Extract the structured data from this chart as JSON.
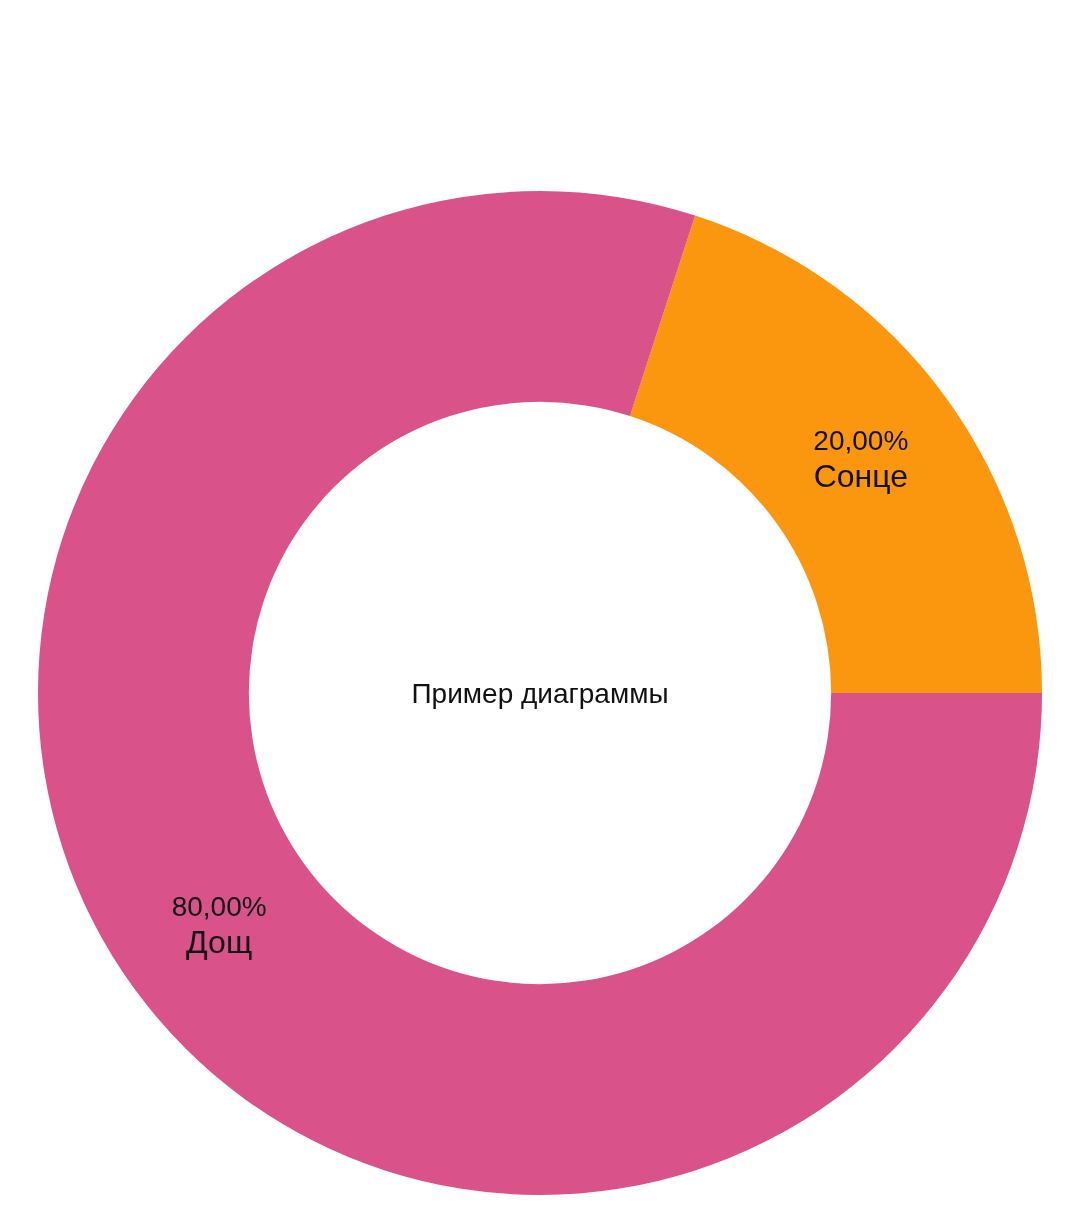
{
  "chart_data": {
    "type": "donut",
    "title": "Пример диаграммы",
    "categories": [
      "Сонце",
      "Дощ"
    ],
    "values": [
      20,
      80
    ],
    "colors": [
      "#fb960f",
      "#d9528a"
    ],
    "value_labels": [
      "20,00%",
      "80,00%"
    ],
    "legend": false
  }
}
